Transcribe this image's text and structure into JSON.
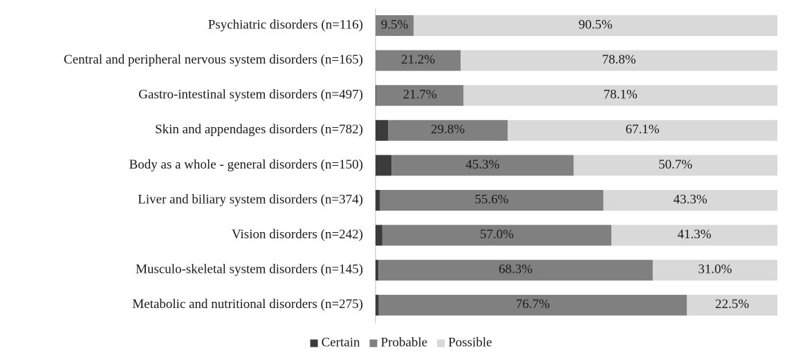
{
  "chart_data": {
    "type": "bar",
    "orientation": "horizontal",
    "stacked": true,
    "categories": [
      "Psychiatric disorders (n=116)",
      "Central and peripheral nervous system disorders (n=165)",
      "Gastro-intestinal system disorders (n=497)",
      "Skin and appendages disorders (n=782)",
      "Body as a whole - general disorders (n=150)",
      "Liver and biliary system disorders (n=374)",
      "Vision disorders (n=242)",
      "Musculo-skeletal system disorders (n=145)",
      "Metabolic and nutritional disorders (n=275)"
    ],
    "series": [
      {
        "name": "Certain",
        "color": "#3b3b3b",
        "values": [
          0.0,
          0.0,
          0.2,
          3.1,
          4.0,
          1.1,
          1.7,
          0.7,
          0.8
        ],
        "labels": [
          "",
          "",
          "",
          "",
          "",
          "",
          "",
          "",
          ""
        ]
      },
      {
        "name": "Probable",
        "color": "#808080",
        "values": [
          9.5,
          21.2,
          21.7,
          29.8,
          45.3,
          55.6,
          57.0,
          68.3,
          76.7
        ],
        "labels": [
          "9.5%",
          "21.2%",
          "21.7%",
          "29.8%",
          "45.3%",
          "55.6%",
          "57.0%",
          "68.3%",
          "76.7%"
        ]
      },
      {
        "name": "Possible",
        "color": "#d9d9d9",
        "values": [
          90.5,
          78.8,
          78.1,
          67.1,
          50.7,
          43.3,
          41.3,
          31.0,
          22.5
        ],
        "labels": [
          "90.5%",
          "78.8%",
          "78.1%",
          "67.1%",
          "50.7%",
          "43.3%",
          "41.3%",
          "31.0%",
          "22.5%"
        ]
      }
    ],
    "xlim": [
      0,
      100
    ],
    "grid": false,
    "legend": "bottom"
  }
}
